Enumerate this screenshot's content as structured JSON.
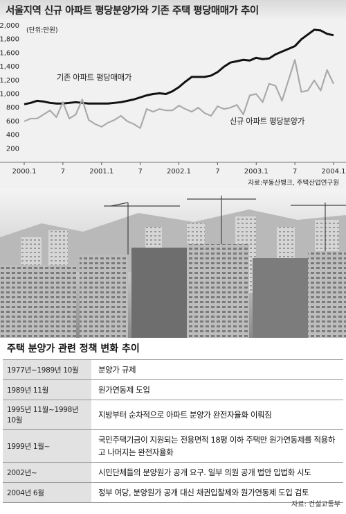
{
  "chart_data": {
    "type": "line",
    "title": "서울지역 신규 아파트 평당분양가와 기존 주택 평당매매가 추이",
    "unit": "(단위:만원)",
    "source": "자료:부동산뱅크, 주택산업연구원",
    "categories": [
      "2000.1",
      null,
      null,
      null,
      null,
      null,
      "7",
      null,
      null,
      null,
      null,
      null,
      "2001.1",
      null,
      null,
      null,
      null,
      null,
      "7",
      null,
      null,
      null,
      null,
      null,
      "2002.1",
      null,
      null,
      null,
      null,
      null,
      "7",
      null,
      null,
      null,
      null,
      null,
      "2003.1",
      null,
      null,
      null,
      null,
      null,
      "7",
      null,
      null,
      null,
      null,
      null,
      "2004.1"
    ],
    "series": [
      {
        "name": "기존 아파트 평당매매가",
        "color": "#111111",
        "values": [
          850,
          870,
          900,
          890,
          870,
          860,
          860,
          870,
          880,
          870,
          860,
          860,
          860,
          860,
          870,
          880,
          900,
          920,
          950,
          980,
          1000,
          1010,
          1000,
          1040,
          1100,
          1180,
          1250,
          1250,
          1250,
          1270,
          1320,
          1400,
          1460,
          1480,
          1500,
          1490,
          1530,
          1510,
          1520,
          1580,
          1620,
          1660,
          1700,
          1800,
          1870,
          1940,
          1930,
          1880,
          1860
        ]
      },
      {
        "name": "신규 아파트 평당분양가",
        "color": "#aaaaaa",
        "values": [
          600,
          640,
          640,
          700,
          760,
          660,
          880,
          640,
          700,
          920,
          620,
          560,
          520,
          580,
          620,
          680,
          600,
          560,
          500,
          780,
          740,
          780,
          760,
          760,
          830,
          780,
          740,
          800,
          720,
          680,
          820,
          780,
          800,
          840,
          700,
          980,
          1000,
          880,
          1150,
          1120,
          900,
          1200,
          1500,
          1030,
          1050,
          1200,
          1050,
          1350,
          1150
        ]
      }
    ],
    "ylim": [
      0,
      2000
    ],
    "yticks": [
      200,
      400,
      600,
      800,
      {
        "value": 1000,
        "label": "1,000"
      },
      {
        "value": 1200,
        "label": "1,200"
      },
      {
        "value": 1400,
        "label": "1,400"
      },
      {
        "value": 1600,
        "label": "1,600"
      },
      {
        "value": 1800,
        "label": "1,800"
      },
      {
        "value": 2000,
        "label": "2,000"
      }
    ],
    "grid": false
  },
  "table": {
    "title": "주택 분양가 관련 정책 변화 추이",
    "rows": [
      [
        "1977년~1989년 10월",
        "분양가 규제"
      ],
      [
        "1989년 11월",
        "원가연동제 도입"
      ],
      [
        "1995년 11월~1998년 10월",
        "지방부터 순차적으로 아파트 분양가 완전자율화 이뤄짐"
      ],
      [
        "1999년 1월~",
        "국민주택기금이 지원되는 전용면적 18평 이하 주택만 원가연동제를 적용하고 나머지는 완전자율화"
      ],
      [
        "2002년~",
        "시민단체들의 분양원가 공개 요구. 일부 의원 공개 법안 입법화 시도"
      ],
      [
        "2004년 6월",
        "정부 여당, 분양원가 공개 대신 채권입찰제와 원가연동제 도입 검토"
      ]
    ],
    "source": "자료: 건설교통부"
  }
}
